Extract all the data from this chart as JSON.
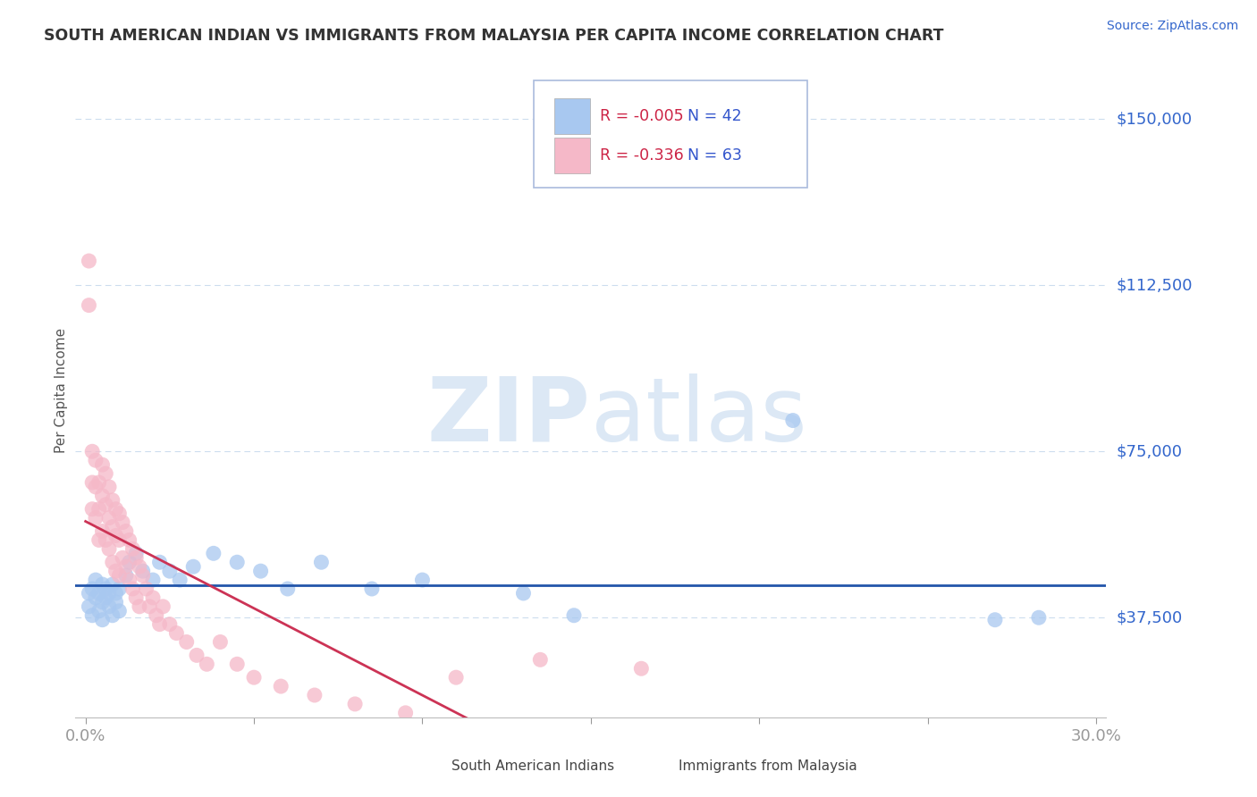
{
  "title": "SOUTH AMERICAN INDIAN VS IMMIGRANTS FROM MALAYSIA PER CAPITA INCOME CORRELATION CHART",
  "source": "Source: ZipAtlas.com",
  "ylabel": "Per Capita Income",
  "xlim": [
    -0.003,
    0.303
  ],
  "ylim": [
    15000,
    162500
  ],
  "yticks": [
    37500,
    75000,
    112500,
    150000
  ],
  "ytick_labels": [
    "$37,500",
    "$75,000",
    "$112,500",
    "$150,000"
  ],
  "xticks": [
    0.0,
    0.05,
    0.1,
    0.15,
    0.2,
    0.25,
    0.3
  ],
  "xtick_labels": [
    "0.0%",
    "",
    "",
    "",
    "",
    "",
    "30.0%"
  ],
  "blue_label": "South American Indians",
  "pink_label": "Immigrants from Malaysia",
  "blue_R": "-0.005",
  "blue_N": "42",
  "pink_R": "-0.336",
  "pink_N": "63",
  "blue_color": "#a8c8f0",
  "pink_color": "#f5b8c8",
  "trend_blue_color": "#2255aa",
  "trend_pink_solid_color": "#cc3355",
  "trend_pink_dashed_color": "#e8b0c0",
  "watermark_zip": "ZIP",
  "watermark_atlas": "atlas",
  "watermark_color": "#dce8f5",
  "title_color": "#333333",
  "axis_color": "#3366cc",
  "grid_color": "#ccddee",
  "blue_x": [
    0.001,
    0.001,
    0.002,
    0.002,
    0.003,
    0.003,
    0.004,
    0.004,
    0.005,
    0.005,
    0.005,
    0.006,
    0.006,
    0.007,
    0.007,
    0.008,
    0.008,
    0.009,
    0.009,
    0.01,
    0.01,
    0.012,
    0.013,
    0.015,
    0.017,
    0.02,
    0.022,
    0.025,
    0.028,
    0.032,
    0.038,
    0.045,
    0.052,
    0.06,
    0.07,
    0.085,
    0.1,
    0.13,
    0.145,
    0.21,
    0.27,
    0.283
  ],
  "blue_y": [
    43000,
    40000,
    44000,
    38000,
    42000,
    46000,
    39000,
    43000,
    41000,
    45000,
    37000,
    42000,
    44000,
    40000,
    43000,
    38000,
    45000,
    41000,
    43000,
    44000,
    39000,
    47000,
    50000,
    52000,
    48000,
    46000,
    50000,
    48000,
    46000,
    49000,
    52000,
    50000,
    48000,
    44000,
    50000,
    44000,
    46000,
    43000,
    38000,
    82000,
    37000,
    37500
  ],
  "pink_x": [
    0.001,
    0.001,
    0.002,
    0.002,
    0.002,
    0.003,
    0.003,
    0.003,
    0.004,
    0.004,
    0.004,
    0.005,
    0.005,
    0.005,
    0.006,
    0.006,
    0.006,
    0.007,
    0.007,
    0.007,
    0.008,
    0.008,
    0.008,
    0.009,
    0.009,
    0.009,
    0.01,
    0.01,
    0.01,
    0.011,
    0.011,
    0.012,
    0.012,
    0.013,
    0.013,
    0.014,
    0.014,
    0.015,
    0.015,
    0.016,
    0.016,
    0.017,
    0.018,
    0.019,
    0.02,
    0.021,
    0.022,
    0.023,
    0.025,
    0.027,
    0.03,
    0.033,
    0.036,
    0.04,
    0.045,
    0.05,
    0.058,
    0.068,
    0.08,
    0.095,
    0.11,
    0.135,
    0.165
  ],
  "pink_y": [
    118000,
    108000,
    75000,
    68000,
    62000,
    73000,
    67000,
    60000,
    68000,
    62000,
    55000,
    72000,
    65000,
    57000,
    70000,
    63000,
    55000,
    67000,
    60000,
    53000,
    64000,
    58000,
    50000,
    62000,
    56000,
    48000,
    61000,
    55000,
    47000,
    59000,
    51000,
    57000,
    49000,
    55000,
    46000,
    53000,
    44000,
    51000,
    42000,
    49000,
    40000,
    47000,
    44000,
    40000,
    42000,
    38000,
    36000,
    40000,
    36000,
    34000,
    32000,
    29000,
    27000,
    32000,
    27000,
    24000,
    22000,
    20000,
    18000,
    16000,
    24000,
    28000,
    26000
  ]
}
